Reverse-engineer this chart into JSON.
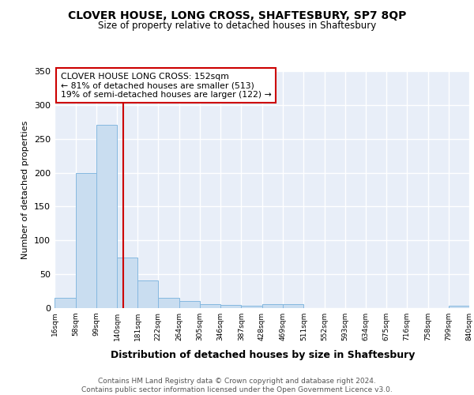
{
  "title": "CLOVER HOUSE, LONG CROSS, SHAFTESBURY, SP7 8QP",
  "subtitle": "Size of property relative to detached houses in Shaftesbury",
  "xlabel": "Distribution of detached houses by size in Shaftesbury",
  "ylabel": "Number of detached properties",
  "bar_color": "#c9ddf0",
  "bar_edge_color": "#85b8e0",
  "background_color": "#e8eef8",
  "grid_color": "#ffffff",
  "bins": [
    16,
    58,
    99,
    140,
    181,
    222,
    264,
    305,
    346,
    387,
    428,
    469,
    511,
    552,
    593,
    634,
    675,
    716,
    758,
    799,
    840
  ],
  "heights": [
    15,
    199,
    271,
    75,
    41,
    15,
    10,
    6,
    5,
    4,
    6,
    6,
    0,
    0,
    0,
    0,
    0,
    0,
    0,
    3
  ],
  "property_size": 152,
  "annotation_line1": "CLOVER HOUSE LONG CROSS: 152sqm",
  "annotation_line2": "← 81% of detached houses are smaller (513)",
  "annotation_line3": "19% of semi-detached houses are larger (122) →",
  "vline_color": "#cc0000",
  "annotation_box_edge_color": "#cc0000",
  "footer_text": "Contains HM Land Registry data © Crown copyright and database right 2024.\nContains public sector information licensed under the Open Government Licence v3.0.",
  "ylim": [
    0,
    350
  ],
  "yticks": [
    0,
    50,
    100,
    150,
    200,
    250,
    300,
    350
  ]
}
